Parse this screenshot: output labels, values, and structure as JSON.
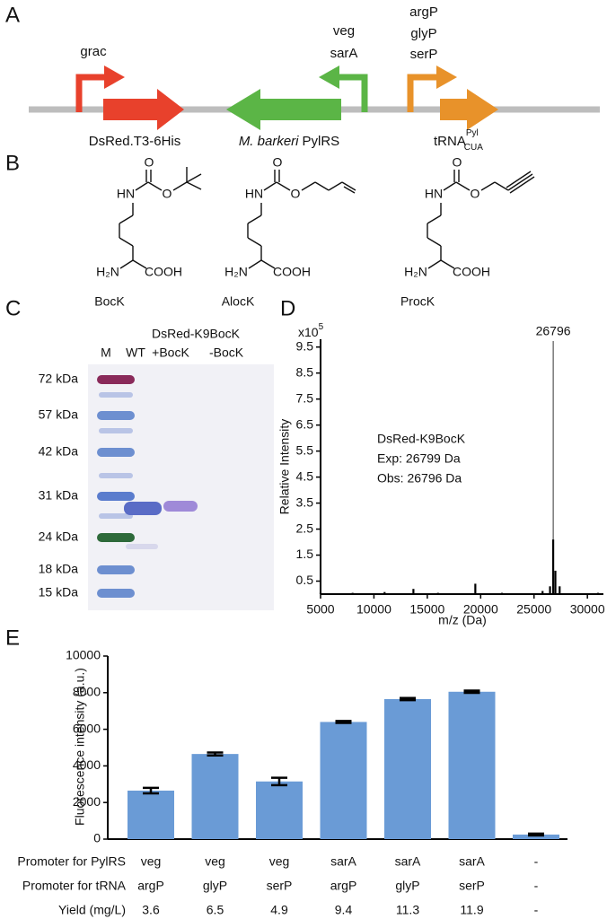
{
  "panel_labels": [
    "A",
    "B",
    "C",
    "D",
    "E"
  ],
  "panel_a": {
    "promoters": [
      {
        "labels": [
          "grac"
        ]
      },
      {
        "labels": [
          "veg",
          "sarA"
        ]
      },
      {
        "labels": [
          "argP",
          "glyP",
          "serP"
        ]
      }
    ],
    "genes": {
      "dsred": "DsRed.T3-6His",
      "pylrs": {
        "species": "M. barkeri",
        "name": "PylRS"
      },
      "trna": {
        "text": "tRNA",
        "sup": "Pyl",
        "sub": "CUA"
      }
    }
  },
  "panel_b": {
    "molecules": [
      {
        "name": "BocK",
        "atoms": [
          "HN",
          "O",
          "O",
          "H₂N",
          "COOH"
        ]
      },
      {
        "name": "AlocK",
        "atoms": [
          "HN",
          "O",
          "O",
          "H₂N",
          "COOH"
        ]
      },
      {
        "name": "ProcK",
        "atoms": [
          "HN",
          "O",
          "O",
          "H₂N",
          "COOH"
        ]
      }
    ]
  },
  "panel_c": {
    "title": "DsRed-K9BocK",
    "lanes": [
      "M",
      "WT",
      "+BocK",
      "-BocK"
    ],
    "markers": [
      "72 kDa",
      "57 kDa",
      "42 kDa",
      "31 kDa",
      "24 kDa",
      "18 kDa",
      "15 kDa"
    ]
  },
  "chart_data": [
    {
      "type": "spectrum",
      "y_multiplier": "x10",
      "y_multiplier_exponent": "5",
      "x": [
        5000,
        8000,
        11000,
        13700,
        16000,
        19500,
        22000,
        25800,
        26500,
        26796,
        27000,
        27400,
        31000
      ],
      "values": [
        0.05,
        0.05,
        0.08,
        0.2,
        0.05,
        0.4,
        0.05,
        0.12,
        0.3,
        2.1,
        0.9,
        0.3,
        0.05
      ],
      "color": "#000000",
      "xlim": [
        5000,
        31500
      ],
      "ylim": [
        0,
        9.8
      ],
      "xticks": [
        5000,
        10000,
        15000,
        20000,
        25000,
        30000
      ],
      "yticks": [
        0.5,
        1.5,
        2.5,
        3.5,
        4.5,
        5.5,
        6.5,
        7.5,
        8.5,
        9.5
      ],
      "xlabel": "m/z (Da)",
      "ylabel": "Relative Intensity",
      "annotations": [
        "DsRed-K9BocK",
        "Exp: 26799 Da",
        "Obs: 26796 Da"
      ]
    },
    {
      "type": "bar",
      "values": [
        2650,
        4650,
        3150,
        6400,
        7650,
        8050,
        250
      ],
      "errors": [
        150,
        80,
        200,
        50,
        60,
        60,
        50
      ],
      "color": "#6a9bd6",
      "ylim": [
        0,
        10000
      ],
      "yticks": [
        0,
        2000,
        4000,
        6000,
        8000,
        10000
      ],
      "ylabel": "Fluorescence intensity (a.u.)",
      "table": {
        "rows": [
          {
            "label": "Promoter for PylRS",
            "cells": [
              "veg",
              "veg",
              "veg",
              "sarA",
              "sarA",
              "sarA",
              "-"
            ]
          },
          {
            "label": "Promoter for tRNA",
            "cells": [
              "argP",
              "glyP",
              "serP",
              "argP",
              "glyP",
              "serP",
              "-"
            ]
          },
          {
            "label": "Yield (mg/L)",
            "cells": [
              3.6,
              6.5,
              4.9,
              9.4,
              11.3,
              11.9,
              "-"
            ]
          }
        ]
      }
    }
  ]
}
